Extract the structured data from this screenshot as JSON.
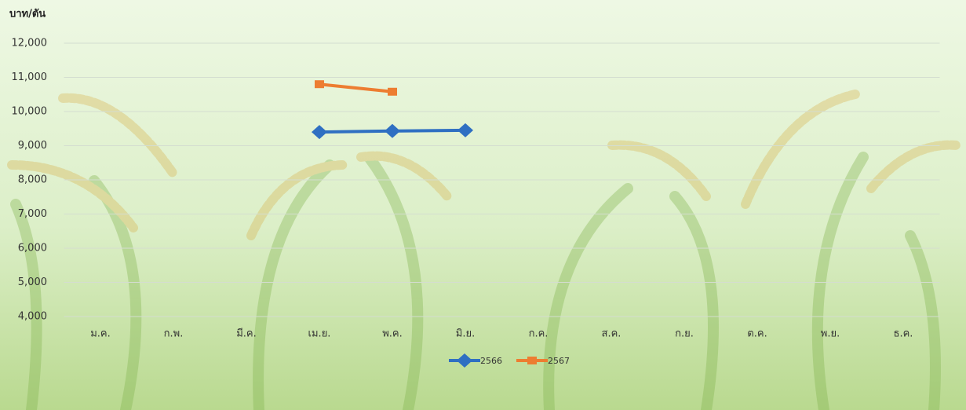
{
  "chart_data": {
    "type": "line",
    "y_axis_label": "บาท/ตัน",
    "categories": [
      "ม.ค.",
      "ก.พ.",
      "มี.ค.",
      "เม.ย.",
      "พ.ค.",
      "มิ.ย.",
      "ก.ค.",
      "ส.ค.",
      "ก.ย.",
      "ต.ค.",
      "พ.ย.",
      "ธ.ค."
    ],
    "series": [
      {
        "name": "2566",
        "color": "#2f6fc2",
        "marker": "diamond",
        "values": [
          null,
          null,
          null,
          9400,
          9430,
          9450,
          null,
          null,
          null,
          null,
          null,
          null
        ]
      },
      {
        "name": "2567",
        "color": "#ed7d31",
        "marker": "square",
        "values": [
          null,
          null,
          null,
          10800,
          10580,
          null,
          null,
          null,
          null,
          null,
          null,
          null
        ]
      }
    ],
    "ylim": [
      4000,
      12000
    ],
    "yticks": [
      {
        "value": 4000,
        "label": "4,000"
      },
      {
        "value": 5000,
        "label": "5,000"
      },
      {
        "value": 6000,
        "label": "6,000"
      },
      {
        "value": 7000,
        "label": "7,000"
      },
      {
        "value": 8000,
        "label": "8,000"
      },
      {
        "value": 9000,
        "label": "9,000"
      },
      {
        "value": 10000,
        "label": "10,000"
      },
      {
        "value": 11000,
        "label": "11,000"
      },
      {
        "value": 12000,
        "label": "12,000"
      }
    ],
    "grid": true,
    "legend": "bottom"
  }
}
